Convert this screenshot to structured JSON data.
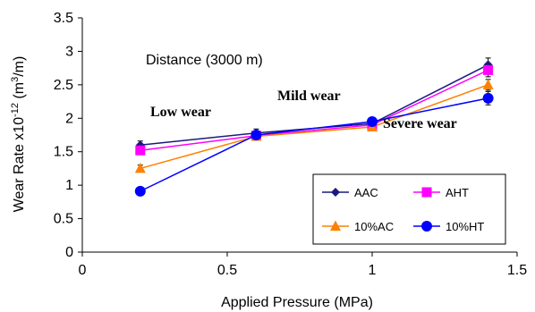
{
  "chart_data": {
    "type": "line",
    "x": [
      0.2,
      0.6,
      1.0,
      1.4
    ],
    "xlabel": "Applied Pressure (MPa)",
    "ylabel_main": "Wear Rate x10",
    "ylabel_exp": "-12",
    "ylabel_unit_open": " (m",
    "ylabel_unit_exp": "3",
    "ylabel_unit_close": "/m)",
    "xlim": [
      0,
      1.5
    ],
    "ylim": [
      0,
      3.5
    ],
    "xticks": [
      "0",
      "0.5",
      "1",
      "1.5"
    ],
    "yticks": [
      "0",
      "0.5",
      "1",
      "1.5",
      "2",
      "2.5",
      "3",
      "3.5"
    ],
    "grid": false,
    "legend_position": "bottom-right",
    "series": [
      {
        "name": "AAC",
        "values": [
          1.6,
          1.78,
          1.92,
          2.8
        ],
        "color": "#1a1a80",
        "marker": "diamond",
        "err": [
          0.06,
          0.06,
          0.06,
          0.1
        ]
      },
      {
        "name": "AHT",
        "values": [
          1.52,
          1.74,
          1.9,
          2.72
        ],
        "color": "#ff00ff",
        "marker": "square",
        "err": [
          0.06,
          0.05,
          0.05,
          0.1
        ]
      },
      {
        "name": "10%AC",
        "values": [
          1.25,
          1.73,
          1.87,
          2.5
        ],
        "color": "#ff8000",
        "marker": "triangle",
        "err": [
          0.05,
          0.05,
          0.05,
          0.08
        ]
      },
      {
        "name": "10%HT",
        "values": [
          0.91,
          1.75,
          1.95,
          2.3
        ],
        "color": "#0000ff",
        "marker": "circle",
        "err": [
          0.03,
          0.05,
          0.05,
          0.1
        ]
      }
    ],
    "annotations": {
      "distance": "Distance (3000 m)",
      "low": "Low wear",
      "mild": "Mild wear",
      "severe": "Severe wear"
    }
  }
}
